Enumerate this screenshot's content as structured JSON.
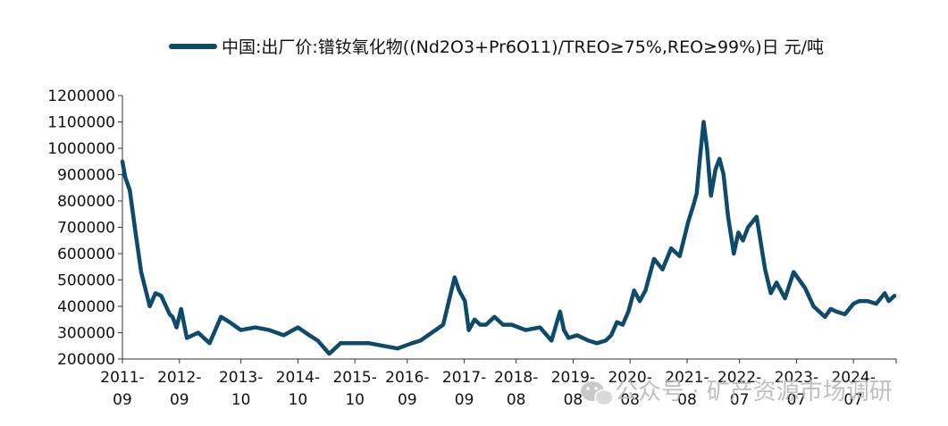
{
  "watermark": {
    "text": "公众号 · 矿产资源市场调研",
    "icon": "wechat-icon"
  },
  "chart_data": {
    "type": "line",
    "title": "",
    "xlabel": "",
    "ylabel": "",
    "legend": {
      "position": "top-center"
    },
    "series": [
      {
        "name": "中国:出厂价:镨钕氧化物((Nd2O3+Pr6O11)/TREO≥75%,REO≥99%)日 元/吨",
        "color": "#0e4a6a",
        "x": [
          2011.67,
          2011.72,
          2011.8,
          2011.9,
          2012.0,
          2012.15,
          2012.25,
          2012.35,
          2012.5,
          2012.55,
          2012.62,
          2012.7,
          2012.8,
          2013.0,
          2013.2,
          2013.4,
          2013.55,
          2013.75,
          2014.0,
          2014.25,
          2014.5,
          2014.75,
          2014.95,
          2015.1,
          2015.3,
          2015.5,
          2015.7,
          2015.85,
          2016.0,
          2016.25,
          2016.5,
          2016.75,
          2016.9,
          2017.1,
          2017.3,
          2017.5,
          2017.58,
          2017.68,
          2017.75,
          2017.85,
          2017.95,
          2018.05,
          2018.2,
          2018.35,
          2018.5,
          2018.75,
          2019.0,
          2019.2,
          2019.35,
          2019.42,
          2019.5,
          2019.65,
          2019.85,
          2020.0,
          2020.15,
          2020.25,
          2020.35,
          2020.45,
          2020.55,
          2020.65,
          2020.75,
          2020.85,
          2021.0,
          2021.15,
          2021.3,
          2021.45,
          2021.6,
          2021.7,
          2021.75,
          2021.8,
          2021.87,
          2021.93,
          2022.0,
          2022.08,
          2022.15,
          2022.22,
          2022.3,
          2022.4,
          2022.48,
          2022.56,
          2022.65,
          2022.8,
          2022.95,
          2023.05,
          2023.15,
          2023.3,
          2023.45,
          2023.55,
          2023.65,
          2023.8,
          2024.0,
          2024.1,
          2024.2,
          2024.35,
          2024.5,
          2024.6,
          2024.75,
          2024.9,
          2025.05,
          2025.12,
          2025.17,
          2025.22
        ],
        "values": [
          950000,
          890000,
          840000,
          680000,
          530000,
          400000,
          450000,
          440000,
          370000,
          360000,
          320000,
          390000,
          280000,
          300000,
          260000,
          360000,
          340000,
          310000,
          320000,
          310000,
          290000,
          320000,
          290000,
          270000,
          220000,
          260000,
          260000,
          260000,
          260000,
          250000,
          240000,
          260000,
          270000,
          300000,
          330000,
          510000,
          460000,
          420000,
          310000,
          350000,
          330000,
          330000,
          360000,
          330000,
          330000,
          310000,
          320000,
          270000,
          380000,
          310000,
          280000,
          290000,
          270000,
          260000,
          270000,
          290000,
          340000,
          330000,
          380000,
          460000,
          420000,
          460000,
          580000,
          540000,
          620000,
          590000,
          720000,
          790000,
          830000,
          950000,
          1100000,
          1000000,
          820000,
          920000,
          960000,
          900000,
          740000,
          600000,
          680000,
          650000,
          700000,
          740000,
          540000,
          450000,
          490000,
          430000,
          530000,
          500000,
          470000,
          400000,
          360000,
          390000,
          380000,
          370000,
          410000,
          420000,
          420000,
          410000,
          450000,
          420000,
          430000,
          440000
        ]
      }
    ],
    "xticks": [
      {
        "x": 2011.67,
        "label": "2011-",
        "label2": "09"
      },
      {
        "x": 2012.67,
        "label": "2012-",
        "label2": "09"
      },
      {
        "x": 2013.75,
        "label": "2013-",
        "label2": "10"
      },
      {
        "x": 2014.75,
        "label": "2014-",
        "label2": "10"
      },
      {
        "x": 2015.75,
        "label": "2015-",
        "label2": "10"
      },
      {
        "x": 2016.67,
        "label": "2016-",
        "label2": "09"
      },
      {
        "x": 2017.67,
        "label": "2017-",
        "label2": "09"
      },
      {
        "x": 2018.58,
        "label": "2018-",
        "label2": "08"
      },
      {
        "x": 2019.58,
        "label": "2019-",
        "label2": "08"
      },
      {
        "x": 2020.58,
        "label": "2020-",
        "label2": "08"
      },
      {
        "x": 2021.58,
        "label": "2021-",
        "label2": "08"
      },
      {
        "x": 2022.5,
        "label": "2022-",
        "label2": "07"
      },
      {
        "x": 2023.5,
        "label": "2023-",
        "label2": "07"
      },
      {
        "x": 2024.5,
        "label": "2024-",
        "label2": "07"
      }
    ],
    "yticks": [
      200000,
      300000,
      400000,
      500000,
      600000,
      700000,
      800000,
      900000,
      1000000,
      1100000,
      1200000
    ],
    "ytick_labels": [
      "200000",
      "300000",
      "400000",
      "500000",
      "600000",
      "700000",
      "800000",
      "900000",
      "1000000",
      "1100000",
      "1200000"
    ],
    "xlim": [
      2011.67,
      2025.25
    ],
    "ylim": [
      200000,
      1200000
    ],
    "grid": false
  }
}
